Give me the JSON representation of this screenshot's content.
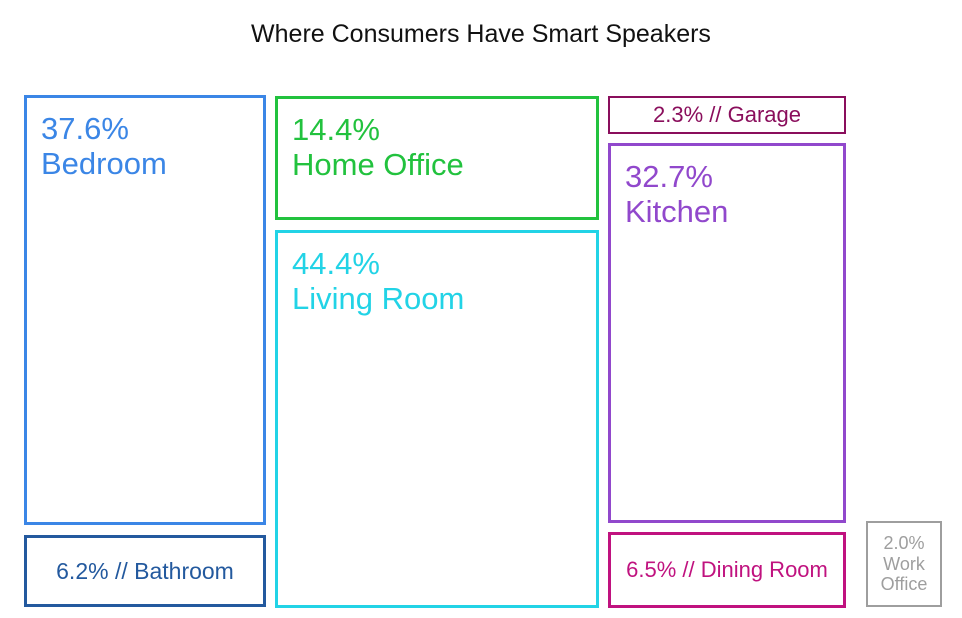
{
  "chart_data": {
    "type": "treemap",
    "title": "Where Consumers Have Smart Speakers",
    "unit": "%",
    "tiles": [
      {
        "label": "Bedroom",
        "value": 37.6,
        "display": "37.6%",
        "color": "#3B86E6"
      },
      {
        "label": "Bathroom",
        "value": 6.2,
        "display": "6.2% // Bathroom",
        "color": "#23599E"
      },
      {
        "label": "Home Office",
        "value": 14.4,
        "display": "14.4%",
        "color": "#22C23E"
      },
      {
        "label": "Living Room",
        "value": 44.4,
        "display": "44.4%",
        "color": "#22D3E6"
      },
      {
        "label": "Garage",
        "value": 2.3,
        "display": "2.3% // Garage",
        "color": "#8A0E5C"
      },
      {
        "label": "Kitchen",
        "value": 32.7,
        "display": "32.7%",
        "color": "#9148CC"
      },
      {
        "label": "Dining Room",
        "value": 6.5,
        "display": "6.5% // Dining Room",
        "color": "#C0127F"
      },
      {
        "label": "Work Office",
        "value": 2.0,
        "display": "2.0%",
        "label_lines": [
          "Work",
          "Office"
        ],
        "color": "#9E9E9E"
      }
    ]
  }
}
